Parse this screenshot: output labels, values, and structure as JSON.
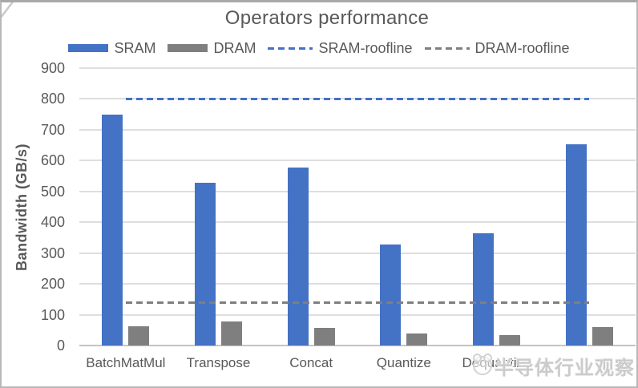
{
  "watermark": {
    "text": "半导体行业观察",
    "logo": "panda-logo-icon"
  },
  "chart_data": {
    "type": "bar",
    "title": "Operators performance",
    "xlabel": "",
    "ylabel": "Bandwidth (GB/s)",
    "ylim": [
      0,
      900
    ],
    "ytick_step": 100,
    "grid": true,
    "legend_position": "top",
    "categories": [
      "BatchMatMul",
      "Transpose",
      "Concat",
      "Quantize",
      "Dequantize",
      ""
    ],
    "series": [
      {
        "name": "SRAM",
        "kind": "bar",
        "color": "#4472C4",
        "values": [
          748,
          527,
          578,
          327,
          365,
          652
        ]
      },
      {
        "name": "DRAM",
        "kind": "bar",
        "color": "#7F7F7F",
        "values": [
          62,
          79,
          56,
          38,
          34,
          60
        ]
      },
      {
        "name": "SRAM-roofline",
        "kind": "dashed-line",
        "color": "#4472C4",
        "value": 800
      },
      {
        "name": "DRAM-roofline",
        "kind": "dashed-line",
        "color": "#7F7F7F",
        "value": 140
      }
    ],
    "colors": {
      "text": "#595959",
      "gridline": "#DEDEDE",
      "axis_line": "#C4C4C4"
    }
  }
}
